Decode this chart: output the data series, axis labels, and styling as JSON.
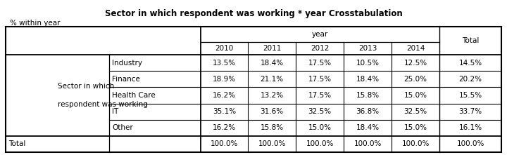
{
  "title": "Sector in which respondent was working * year Crosstabulation",
  "subtitle": "% within year",
  "col_header_1": "year",
  "col_years": [
    "2010",
    "2011",
    "2012",
    "2013",
    "2014"
  ],
  "total_col_label": "Total",
  "row_group_label_line1": "Sector in which",
  "row_group_label_line2": "respondent was working",
  "row_labels": [
    "Industry",
    "Finance",
    "Health Care",
    "IT",
    "Other"
  ],
  "total_label": "Total",
  "data": {
    "Industry": [
      "13.5%",
      "18.4%",
      "17.5%",
      "10.5%",
      "12.5%",
      "14.5%"
    ],
    "Finance": [
      "18.9%",
      "21.1%",
      "17.5%",
      "18.4%",
      "25.0%",
      "20.2%"
    ],
    "Health Care": [
      "16.2%",
      "13.2%",
      "17.5%",
      "15.8%",
      "15.0%",
      "15.5%"
    ],
    "IT": [
      "35.1%",
      "31.6%",
      "32.5%",
      "36.8%",
      "32.5%",
      "33.7%"
    ],
    "Other": [
      "16.2%",
      "15.8%",
      "15.0%",
      "18.4%",
      "15.0%",
      "16.1%"
    ]
  },
  "total_row": [
    "100.0%",
    "100.0%",
    "100.0%",
    "100.0%",
    "100.0%",
    "100.0%"
  ],
  "bg_color": "#ffffff",
  "line_color": "#000000",
  "font_size": 7.5,
  "title_font_size": 8.5,
  "subtitle_font_size": 7.5,
  "font_family": "DejaVu Sans"
}
